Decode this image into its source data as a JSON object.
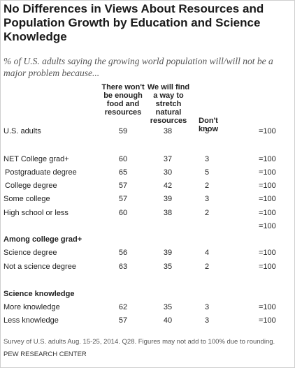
{
  "chart_data": {
    "type": "table",
    "title": "No Differences in Views About Resources and Population Growth by Education and Science Knowledge",
    "subtitle": "% of U.S. adults saying the growing world population will/will not be a major problem because...",
    "columns": [
      "There won't be enough food and resources",
      "We will find a way to stretch natural resources",
      "Don't know"
    ],
    "rows": [
      {
        "label": "U.S. adults",
        "style": "normal",
        "values": [
          "59",
          "38",
          "3"
        ],
        "total": "=100"
      },
      {
        "label": "NET College grad+",
        "style": "normal",
        "values": [
          "60",
          "37",
          "3"
        ],
        "total": "=100"
      },
      {
        "label": "Postgraduate degree",
        "style": "indent",
        "values": [
          "65",
          "30",
          "5"
        ],
        "total": "=100"
      },
      {
        "label": "College degree",
        "style": "indent",
        "values": [
          "57",
          "42",
          "2"
        ],
        "total": "=100"
      },
      {
        "label": "Some college",
        "style": "normal",
        "values": [
          "57",
          "39",
          "3"
        ],
        "total": "=100"
      },
      {
        "label": "High school or less",
        "style": "normal",
        "values": [
          "60",
          "38",
          "2"
        ],
        "total": "=100"
      },
      {
        "label": "",
        "style": "normal",
        "values": [
          "",
          "",
          ""
        ],
        "total": "=100"
      },
      {
        "label": "Among college grad+",
        "style": "section",
        "values": [
          "",
          "",
          ""
        ],
        "total": ""
      },
      {
        "label": "Science degree",
        "style": "normal",
        "values": [
          "56",
          "39",
          "4"
        ],
        "total": "=100"
      },
      {
        "label": "Not a science degree",
        "style": "normal",
        "values": [
          "63",
          "35",
          "2"
        ],
        "total": "=100"
      },
      {
        "label": "Science knowledge",
        "style": "section",
        "values": [
          "",
          "",
          ""
        ],
        "total": ""
      },
      {
        "label": "More knowledge",
        "style": "normal",
        "values": [
          "62",
          "35",
          "3"
        ],
        "total": "=100"
      },
      {
        "label": "Less knowledge",
        "style": "normal",
        "values": [
          "57",
          "40",
          "3"
        ],
        "total": "=100"
      }
    ],
    "footnote": "Survey of U.S. adults Aug. 15-25, 2014. Q28. Figures may not add to 100% due to rounding.",
    "source": "PEW RESEARCH CENTER"
  }
}
